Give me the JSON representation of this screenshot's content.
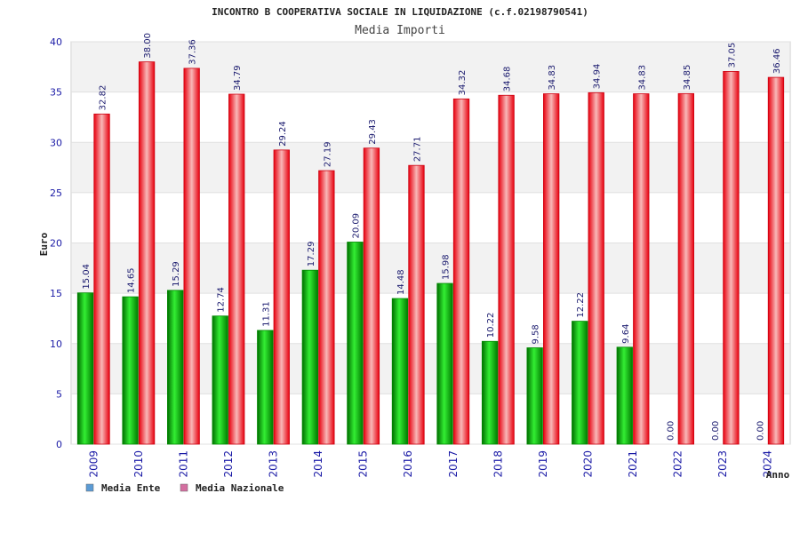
{
  "chart_data": {
    "type": "bar",
    "title": "INCONTRO B COOPERATIVA SOCIALE IN LIQUIDAZIONE (c.f.02198790541)",
    "subtitle": "Media Importi",
    "xlabel": "Anno",
    "ylabel": "Euro",
    "ylim": [
      0,
      40
    ],
    "yticks": [
      "0",
      "5",
      "10",
      "15",
      "20",
      "25",
      "30",
      "35",
      "40"
    ],
    "grid": true,
    "legend_position": "bottom-left",
    "categories": [
      "2009",
      "2010",
      "2011",
      "2012",
      "2013",
      "2014",
      "2015",
      "2016",
      "2017",
      "2018",
      "2019",
      "2020",
      "2021",
      "2022",
      "2023",
      "2024"
    ],
    "series": [
      {
        "name": "Media Ente",
        "color": "#00b400",
        "legend_color": "#5b9bd5",
        "values": [
          15.04,
          14.65,
          15.29,
          12.74,
          11.31,
          17.29,
          20.09,
          14.48,
          15.98,
          10.22,
          9.58,
          12.22,
          9.64,
          0.0,
          0.0,
          0.0
        ],
        "labels": [
          "15.04",
          "14.65",
          "15.29",
          "12.74",
          "11.31",
          "17.29",
          "20.09",
          "14.48",
          "15.98",
          "10.22",
          "9.58",
          "12.22",
          "9.64",
          "0.00",
          "0.00",
          "0.00"
        ]
      },
      {
        "name": "Media Nazionale",
        "color": "#e8101a",
        "legend_color": "#d46fa0",
        "values": [
          32.82,
          38.0,
          37.36,
          34.79,
          29.24,
          27.19,
          29.43,
          27.71,
          34.32,
          34.68,
          34.83,
          34.94,
          34.83,
          34.85,
          37.05,
          36.46
        ],
        "labels": [
          "32.82",
          "38.00",
          "37.36",
          "34.79",
          "29.24",
          "27.19",
          "29.43",
          "27.71",
          "34.32",
          "34.68",
          "34.83",
          "34.94",
          "34.83",
          "34.85",
          "37.05",
          "36.46"
        ]
      }
    ]
  }
}
